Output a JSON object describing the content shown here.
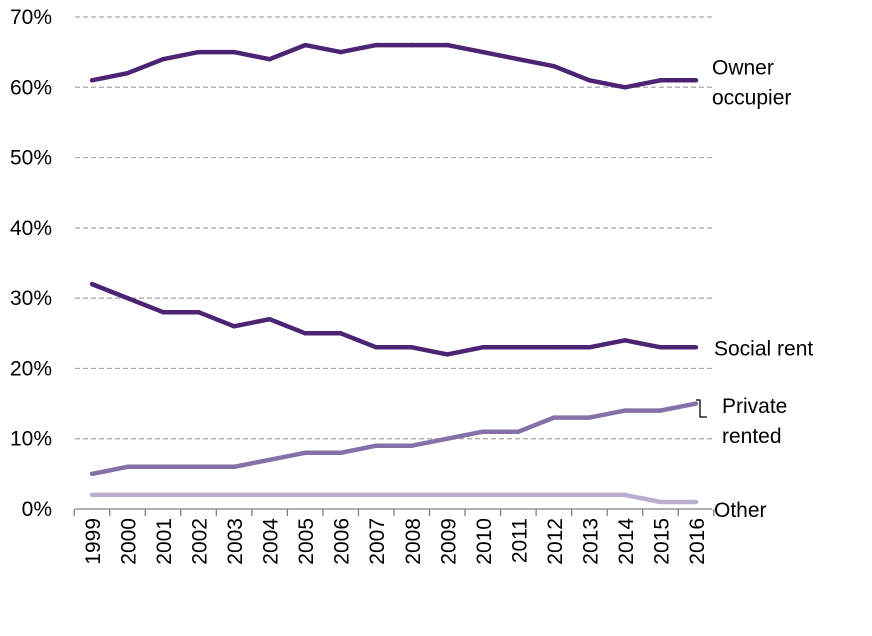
{
  "chart_data": {
    "type": "line",
    "title": "",
    "xlabel": "",
    "ylabel": "",
    "categories": [
      "1999",
      "2000",
      "2001",
      "2002",
      "2003",
      "2004",
      "2005",
      "2006",
      "2007",
      "2008",
      "2009",
      "2010",
      "2011",
      "2012",
      "2013",
      "2014",
      "2015",
      "2016"
    ],
    "yticks": [
      "0%",
      "10%",
      "20%",
      "30%",
      "40%",
      "50%",
      "60%",
      "70%"
    ],
    "ylim": [
      0,
      70
    ],
    "grid": true,
    "legend": "direct labels at right end of each line",
    "series": [
      {
        "name": "Owner occupier",
        "label_lines": [
          "Owner",
          "occupier"
        ],
        "color": "#4b2474",
        "values": [
          61,
          62,
          64,
          65,
          65,
          64,
          66,
          65,
          66,
          66,
          66,
          65,
          64,
          63,
          61,
          60,
          61,
          61
        ]
      },
      {
        "name": "Social rent",
        "label_lines": [
          "Social rent"
        ],
        "color": "#4b2474",
        "values": [
          32,
          30,
          28,
          28,
          26,
          27,
          25,
          25,
          23,
          23,
          22,
          23,
          23,
          23,
          23,
          24,
          23,
          23
        ]
      },
      {
        "name": "Private rented",
        "label_lines": [
          "Private",
          "rented"
        ],
        "color": "#8670a8",
        "values": [
          5,
          6,
          6,
          6,
          6,
          7,
          8,
          8,
          9,
          9,
          10,
          11,
          11,
          13,
          13,
          14,
          14,
          15
        ]
      },
      {
        "name": "Other",
        "label_lines": [
          "Other"
        ],
        "color": "#b9aecd",
        "values": [
          2,
          2,
          2,
          2,
          2,
          2,
          2,
          2,
          2,
          2,
          2,
          2,
          2,
          2,
          2,
          2,
          1,
          1
        ]
      }
    ]
  }
}
